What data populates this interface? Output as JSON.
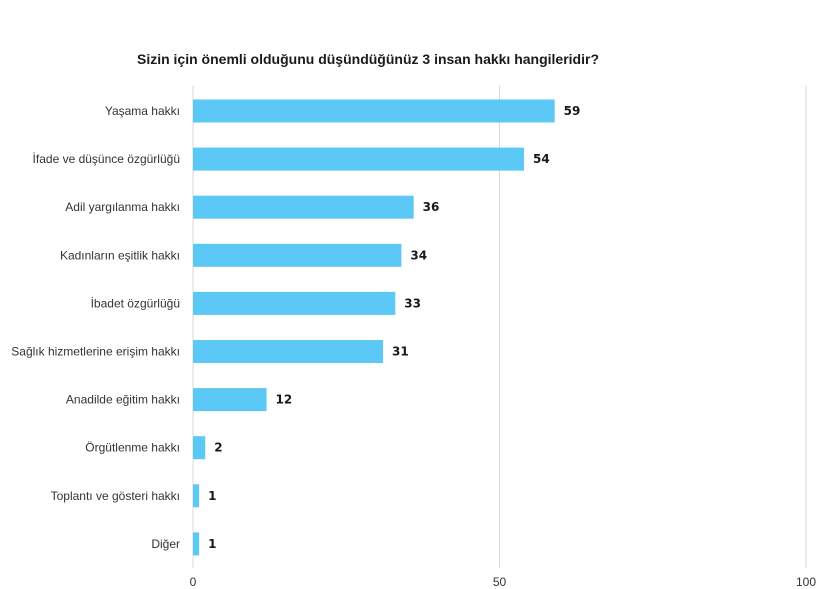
{
  "chart_data": {
    "type": "bar",
    "orientation": "horizontal",
    "title": "Sizin için önemli olduğunu düşündüğünüz 3 insan hakkı hangileridir?",
    "categories": [
      "Yaşama hakkı",
      "İfade ve düşünce özgürlüğü",
      "Adil yargılanma hakkı",
      "Kadınların eşitlik hakkı",
      "İbadet özgürlüğü",
      "Sağlık hizmetlerine erişim hakkı",
      "Anadilde eğitim hakkı",
      "Örgütlenme hakkı",
      "Toplantı ve gösteri hakkı",
      "Diğer"
    ],
    "values": [
      59,
      54,
      36,
      34,
      33,
      31,
      12,
      2,
      1,
      1
    ],
    "xlim": [
      0,
      100
    ],
    "xticks": [
      0,
      50,
      100
    ],
    "xlabel": "",
    "ylabel": "",
    "grid": true,
    "bar_color": "#5BC8F5",
    "grid_color": "#d9d9d9"
  }
}
